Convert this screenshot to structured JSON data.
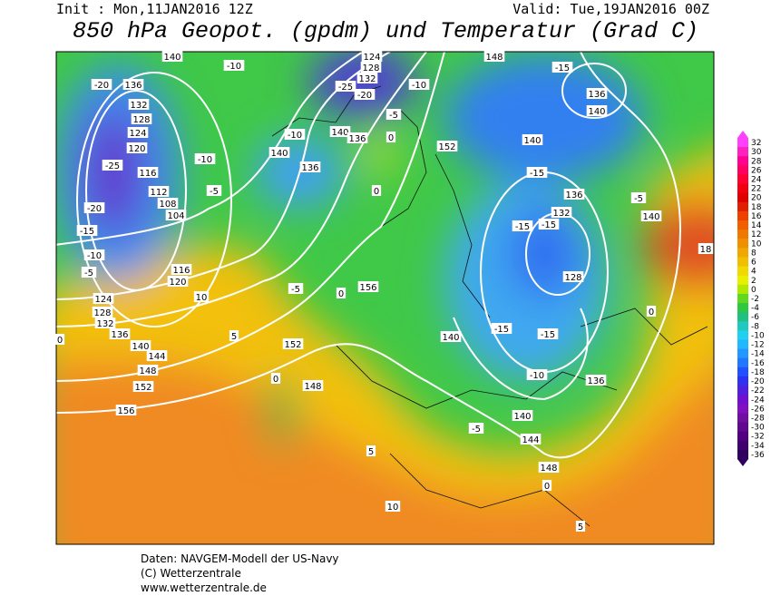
{
  "header": {
    "init": "Init : Mon,11JAN2016 12Z",
    "valid": "Valid: Tue,19JAN2016 00Z",
    "title": "850 hPa Geopot. (gpdm) und Temperatur (Grad C)"
  },
  "colorbar": {
    "labels": [
      32,
      30,
      28,
      26,
      24,
      22,
      20,
      18,
      16,
      14,
      12,
      10,
      8,
      6,
      4,
      2,
      0,
      -2,
      -4,
      -6,
      -8,
      -10,
      -12,
      -14,
      -16,
      -18,
      -20,
      -22,
      -24,
      -26,
      -28,
      -30,
      -32,
      -34,
      -36
    ]
  },
  "map": {
    "labels": [
      "140",
      "-10",
      "124",
      "128",
      "132",
      "-25",
      "-20",
      "-10",
      "148",
      "-15",
      "136",
      "140",
      "-20",
      "136",
      "132",
      "128",
      "124",
      "120",
      "-25",
      "116",
      "112",
      "108",
      "104",
      "-20",
      "-15",
      "-10",
      "-5",
      "116",
      "120",
      "-10",
      "-5",
      "-10",
      "140",
      "136",
      "140",
      "136",
      "0",
      "-5",
      "0",
      "152",
      "140",
      "-15",
      "136",
      "132",
      "-15",
      "-15",
      "140",
      "-5",
      "128",
      "18",
      "-5",
      "0",
      "156",
      "124",
      "128",
      "132",
      "136",
      "140",
      "144",
      "148",
      "152",
      "156",
      "10",
      "5",
      "0",
      "152",
      "0",
      "148",
      "140",
      "-15",
      "-15",
      "-10",
      "136",
      "-5",
      "140",
      "144",
      "148",
      "0",
      "5",
      "10",
      "5",
      "0"
    ]
  },
  "footer": {
    "lines": [
      "Daten: NAVGEM-Modell der US-Navy",
      "(C) Wetterzentrale",
      "www.wetterzentrale.de"
    ]
  }
}
